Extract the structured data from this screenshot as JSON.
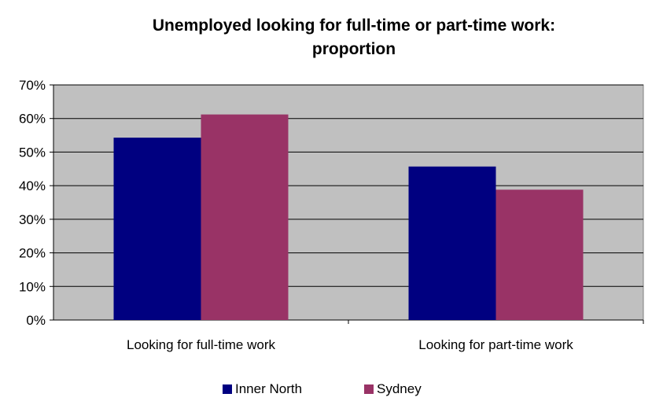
{
  "chart_data": {
    "type": "bar",
    "title_lines": [
      "Unemployed looking for full-time or part-time work:",
      "proportion"
    ],
    "categories": [
      "Looking for full-time work",
      "Looking for part-time work"
    ],
    "series": [
      {
        "name": "Inner North",
        "values": [
          54.3,
          45.7
        ],
        "color": "#000080"
      },
      {
        "name": "Sydney",
        "values": [
          61.2,
          38.8
        ],
        "color": "#993366"
      }
    ],
    "ylim": [
      0,
      70
    ],
    "yticks": [
      "0%",
      "10%",
      "20%",
      "30%",
      "40%",
      "50%",
      "60%",
      "70%"
    ],
    "plot_background": "#c0c0c0",
    "grid": true,
    "legend_position": "bottom"
  }
}
